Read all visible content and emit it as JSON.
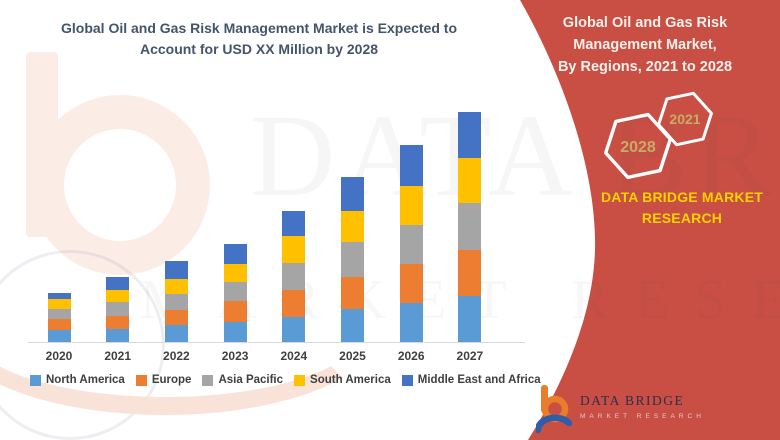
{
  "left": {
    "title_line1": "Global Oil and Gas Risk Management Market is Expected to",
    "title_line2": "Account for USD XX Million by 2028"
  },
  "right": {
    "panel_title_line1": "Global Oil and Gas Risk",
    "panel_title_line2": "Management Market,",
    "panel_title_line3": "By Regions, 2021 to 2028",
    "hexagons": [
      {
        "label": "2021"
      },
      {
        "label": "2028"
      }
    ],
    "brand_line1": "DATA BRIDGE MARKET",
    "brand_line2": "RESEARCH"
  },
  "logo": {
    "name_line": "DATA BRIDGE",
    "sub_line": "MARKET RESEARCH"
  },
  "watermark": {
    "line1": "DATA BRIDGE",
    "line2": "MARKET RESEARCH"
  },
  "colors": {
    "title_text": "#44546A",
    "red_band": "#C94F44",
    "brand_yellow": "#FFD200",
    "hex_number_gold": "#C9AB68",
    "axis_label": "#404040",
    "axis_line": "#D8D8D8"
  },
  "chart_data": {
    "type": "bar",
    "stacked": true,
    "title": "Global Oil and Gas Risk Management Market is Expected to Account for USD XX Million by 2028",
    "xlabel": "",
    "ylabel": "",
    "grid": false,
    "legend_position": "bottom",
    "categories": [
      "2020",
      "2021",
      "2022",
      "2023",
      "2024",
      "2025",
      "2026",
      "2027"
    ],
    "series": [
      {
        "name": "North America",
        "color": "#5B9BD5",
        "values": [
          12,
          13,
          17,
          20,
          25,
          33,
          39,
          46
        ]
      },
      {
        "name": "Europe",
        "color": "#ED7D31",
        "values": [
          11,
          13,
          15,
          21,
          27,
          32,
          39,
          46
        ]
      },
      {
        "name": "Asia Pacific",
        "color": "#A5A5A5",
        "values": [
          10,
          14,
          16,
          19,
          27,
          35,
          39,
          47
        ]
      },
      {
        "name": "South America",
        "color": "#FFC000",
        "values": [
          10,
          12,
          15,
          18,
          27,
          31,
          39,
          45
        ]
      },
      {
        "name": "Middle East and Africa",
        "color": "#4472C4",
        "values": [
          6,
          13,
          18,
          20,
          25,
          34,
          41,
          46
        ]
      }
    ]
  }
}
